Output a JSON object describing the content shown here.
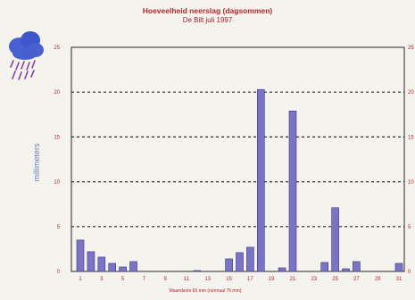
{
  "chart_data": {
    "type": "bar",
    "title": "Hoeveelheid neerslag (dagsommen)",
    "subtitle": "De Bilt juli 1997",
    "ylabel": "millimeters",
    "xlabel": "",
    "footnote": "Maandsom 65 mm (normaal 75 mm)",
    "ylim": [
      0,
      25
    ],
    "yticks": [
      0,
      5,
      10,
      15,
      20,
      25
    ],
    "xticks": [
      1,
      3,
      5,
      7,
      9,
      11,
      13,
      15,
      17,
      19,
      21,
      23,
      25,
      27,
      29,
      31
    ],
    "categories": [
      1,
      2,
      3,
      4,
      5,
      6,
      7,
      8,
      9,
      10,
      11,
      12,
      13,
      14,
      15,
      16,
      17,
      18,
      19,
      20,
      21,
      22,
      23,
      24,
      25,
      26,
      27,
      28,
      29,
      30,
      31
    ],
    "values": [
      3.5,
      2.2,
      1.6,
      0.9,
      0.5,
      1.1,
      0,
      0,
      0,
      0,
      0,
      0.1,
      0,
      0,
      1.4,
      2.1,
      2.7,
      20.3,
      0,
      0.4,
      17.9,
      0,
      0,
      1.0,
      7.1,
      0.3,
      1.1,
      0,
      0,
      0,
      0.9
    ],
    "bar_color": "#7b73c4",
    "gridline_color": "#2a2a2a",
    "accent_color": "#b3262a",
    "grid": true,
    "icon": "rain-cloud-icon"
  }
}
